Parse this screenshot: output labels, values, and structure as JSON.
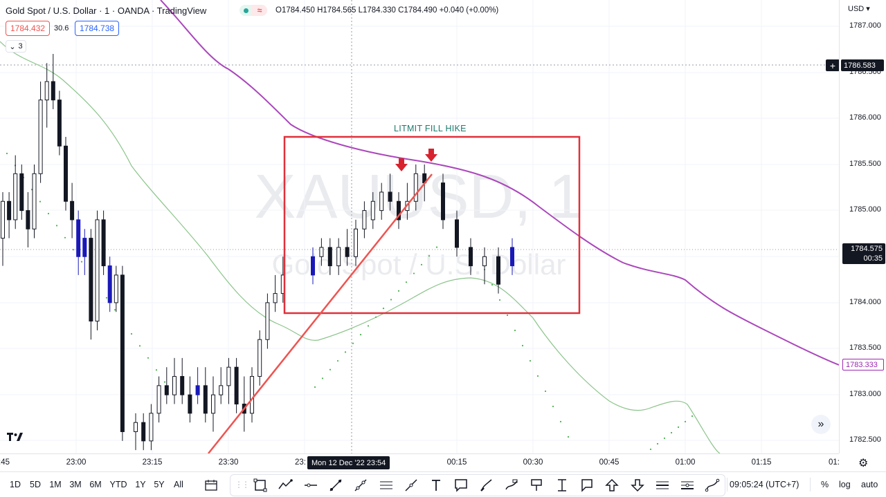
{
  "legend": {
    "title": "Gold Spot / U.S. Dollar · 1 · OANDA · TradingView",
    "wave_icon": "≈",
    "ohlc": "O1784.450  H1784.565  L1784.330  C1784.490  +0.040 (+0.00%)",
    "sell_price": "1784.432",
    "spread": "30.6",
    "buy_price": "1784.738",
    "indicators_count": "3"
  },
  "watermark": {
    "symbol": "XAUUSD, 1",
    "name": "Gold Spot / U.S. Dollar"
  },
  "annotation": {
    "label": "LITMIT FILL HIKE"
  },
  "price_axis": {
    "currency": "USD",
    "ticks": [
      "1787.000",
      "1786.500",
      "1786.000",
      "1785.500",
      "1785.000",
      "1784.500",
      "1784.000",
      "1783.500",
      "1783.000",
      "1782.500"
    ],
    "crosshair_price": "1786.583",
    "last_price": "1784.575",
    "countdown": "00:35",
    "ma_price": "1783.333"
  },
  "time_axis": {
    "labels": [
      ":45",
      "23:00",
      "23:15",
      "23:30",
      "23:",
      "00:15",
      "00:30",
      "00:45",
      "01:00",
      "01:15",
      "01:"
    ],
    "crosshair_time": "Mon 12 Dec '22   23:54"
  },
  "bottom_bar": {
    "ranges": [
      "1D",
      "5D",
      "1M",
      "3M",
      "6M",
      "YTD",
      "1Y",
      "5Y",
      "All"
    ],
    "clock": "09:05:24 (UTC+7)",
    "percent": "%",
    "log": "log",
    "auto": "auto"
  },
  "colors": {
    "ma_slow": "#ab47bc",
    "ma_fast": "#8bc48a",
    "trend_line": "#ef5350",
    "rect": "#e0303a",
    "up_candle": "#ffffff",
    "down_candle": "#131722",
    "highlight_candle": "#1a19b8"
  },
  "chart_data": {
    "type": "candlestick",
    "y_range": [
      1782.35,
      1787.25
    ],
    "x_range": [
      0,
      120
    ],
    "candles": [
      [
        1784.7,
        1785.2,
        1784.4,
        1785.1,
        0
      ],
      [
        1785.1,
        1785.2,
        1784.7,
        1784.9,
        0
      ],
      [
        1784.9,
        1785.6,
        1784.8,
        1785.4,
        0
      ],
      [
        1785.4,
        1785.5,
        1784.9,
        1785.0,
        0
      ],
      [
        1785.0,
        1785.2,
        1784.6,
        1784.8,
        0
      ],
      [
        1784.8,
        1785.5,
        1784.7,
        1785.4,
        0
      ],
      [
        1785.4,
        1786.4,
        1785.3,
        1786.2,
        0
      ],
      [
        1786.2,
        1786.6,
        1785.9,
        1786.4,
        0
      ],
      [
        1786.4,
        1786.7,
        1786.1,
        1786.2,
        0
      ],
      [
        1786.2,
        1786.3,
        1785.6,
        1785.7,
        0
      ],
      [
        1785.7,
        1785.8,
        1785.0,
        1785.1,
        0
      ],
      [
        1785.1,
        1785.3,
        1784.7,
        1784.9,
        0
      ],
      [
        1784.9,
        1785.0,
        1784.3,
        1784.5,
        1
      ],
      [
        1784.5,
        1784.8,
        1784.3,
        1784.7,
        1
      ],
      [
        1784.7,
        1784.8,
        1783.6,
        1783.8,
        0
      ],
      [
        1783.8,
        1785.0,
        1783.7,
        1784.9,
        0
      ],
      [
        1784.9,
        1785.0,
        1784.3,
        1784.4,
        0
      ],
      [
        1784.4,
        1784.5,
        1783.9,
        1784.0,
        1
      ],
      [
        1784.0,
        1784.4,
        1783.9,
        1784.3,
        0
      ],
      [
        1784.3,
        1784.4,
        1782.5,
        1782.6,
        0
      ],
      [
        1782.6,
        1782.8,
        1782.4,
        1782.7,
        0
      ],
      [
        1782.7,
        1782.8,
        1782.4,
        1782.5,
        0
      ],
      [
        1782.5,
        1782.9,
        1782.4,
        1782.8,
        0
      ],
      [
        1782.8,
        1783.2,
        1782.7,
        1783.1,
        0
      ],
      [
        1783.1,
        1783.3,
        1782.9,
        1783.0,
        0
      ],
      [
        1783.0,
        1783.4,
        1782.9,
        1783.2,
        0
      ],
      [
        1783.2,
        1783.4,
        1782.9,
        1783.0,
        0
      ],
      [
        1783.0,
        1783.2,
        1782.7,
        1782.8,
        0
      ],
      [
        1783.0,
        1783.3,
        1782.9,
        1783.1,
        1
      ],
      [
        1783.1,
        1783.3,
        1782.7,
        1782.8,
        0
      ],
      [
        1782.8,
        1783.2,
        1782.6,
        1783.0,
        0
      ],
      [
        1783.0,
        1783.3,
        1782.9,
        1783.1,
        0
      ],
      [
        1783.1,
        1783.4,
        1782.9,
        1783.3,
        0
      ],
      [
        1783.3,
        1783.4,
        1782.8,
        1782.9,
        0
      ],
      [
        1782.9,
        1783.2,
        1782.6,
        1782.8,
        0
      ],
      [
        1782.8,
        1783.3,
        1782.7,
        1783.2,
        0
      ],
      [
        1783.2,
        1783.7,
        1783.1,
        1783.6,
        0
      ],
      [
        1783.6,
        1784.1,
        1783.5,
        1784.0,
        0
      ],
      [
        1784.0,
        1784.3,
        1783.9,
        1784.1,
        0
      ],
      [
        1784.1,
        1784.5,
        1784.0,
        1784.3,
        0
      ],
      [
        1784.3,
        1784.6,
        1784.2,
        1784.5,
        1
      ],
      [
        1784.5,
        1784.7,
        1784.4,
        1784.6,
        0
      ],
      [
        1784.6,
        1784.7,
        1784.3,
        1784.4,
        0
      ],
      [
        1784.4,
        1784.7,
        1784.3,
        1784.6,
        0
      ],
      [
        1784.6,
        1784.8,
        1784.4,
        1784.5,
        0
      ],
      [
        1784.5,
        1784.9,
        1784.4,
        1784.8,
        0
      ],
      [
        1784.8,
        1785.1,
        1784.7,
        1785.0,
        0
      ],
      [
        1784.9,
        1785.2,
        1784.8,
        1785.1,
        0
      ],
      [
        1785.0,
        1785.3,
        1784.9,
        1785.2,
        0
      ],
      [
        1785.2,
        1785.4,
        1785.0,
        1785.1,
        0
      ],
      [
        1785.1,
        1785.2,
        1784.8,
        1784.9,
        0
      ],
      [
        1785.0,
        1785.3,
        1784.9,
        1785.1,
        0
      ],
      [
        1785.1,
        1785.5,
        1785.0,
        1785.4,
        0
      ],
      [
        1785.4,
        1785.5,
        1785.1,
        1785.3,
        0
      ],
      [
        1785.3,
        1785.4,
        1784.8,
        1784.9,
        0
      ],
      [
        1784.9,
        1785.0,
        1784.5,
        1784.6,
        0
      ],
      [
        1784.6,
        1784.7,
        1784.3,
        1784.4,
        0
      ],
      [
        1784.4,
        1784.6,
        1784.2,
        1784.5,
        0
      ],
      [
        1784.5,
        1784.6,
        1784.1,
        1784.2,
        0
      ],
      [
        1784.4,
        1784.7,
        1784.3,
        1784.6,
        1
      ]
    ]
  }
}
